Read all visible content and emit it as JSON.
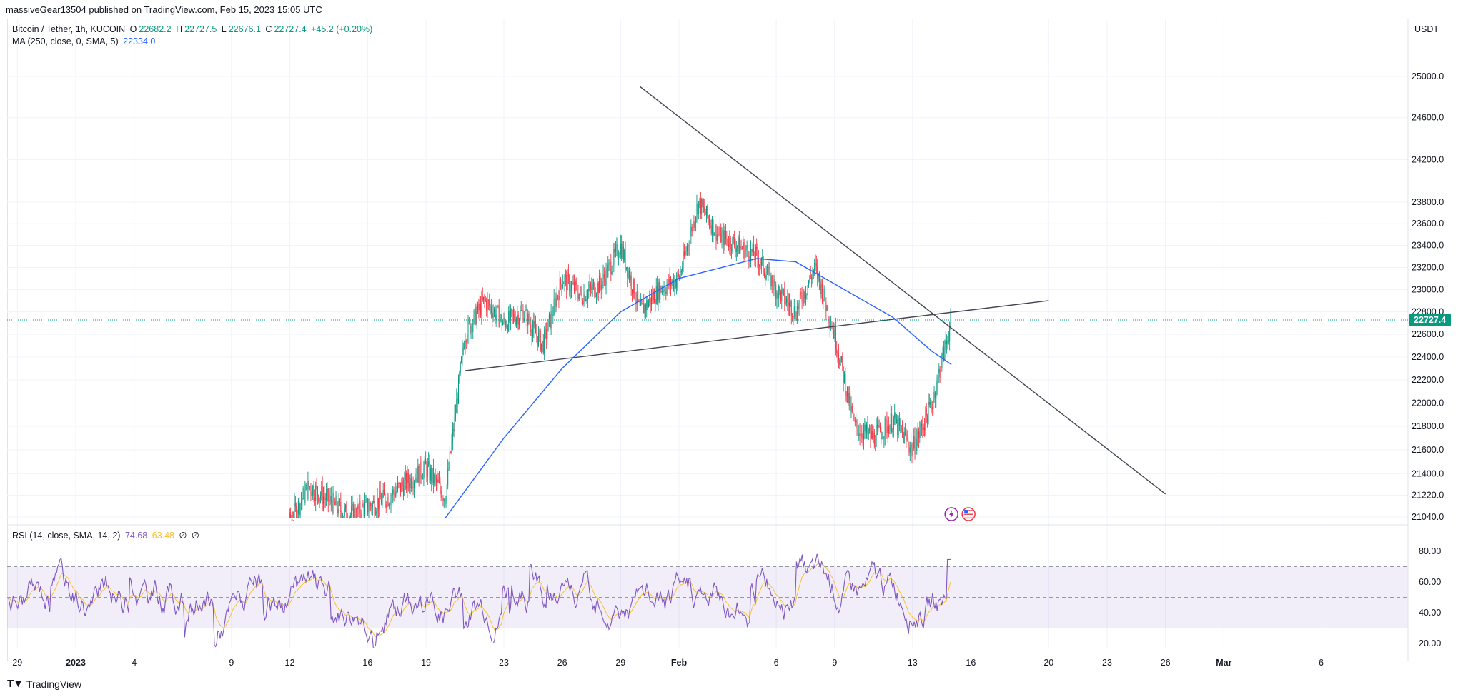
{
  "header": {
    "published_line": "massiveGear13504 published on TradingView.com, Feb 15, 2023 15:05 UTC"
  },
  "legend": {
    "symbol": "Bitcoin / Tether, 1h, KUCOIN",
    "o_label": "O",
    "o_value": "22682.2",
    "h_label": "H",
    "h_value": "22727.5",
    "l_label": "L",
    "l_value": "22676.1",
    "c_label": "C",
    "c_value": "22727.4",
    "change": "+45.2 (+0.20%)",
    "ma_label": "MA (250, close, 0, SMA, 5)",
    "ma_value": "22334.0",
    "rsi_label": "RSI (14, close, SMA, 14, 2)",
    "rsi_value": "74.68",
    "rsi_ma_value": "63.48",
    "rsi_extra1": "∅",
    "rsi_extra2": "∅"
  },
  "footer": {
    "brand": "TradingView"
  },
  "colors": {
    "up": "#089981",
    "down": "#f23645",
    "ma": "#2962ff",
    "rsi": "#7e57c2",
    "rsi_ma": "#f7c034",
    "trendline": "#434651",
    "last_price_badge": "#089981"
  },
  "chart_data": {
    "type": "candlestick",
    "symbol": "Bitcoin / Tether",
    "timeframe": "1h",
    "exchange": "KUCOIN",
    "currency": "USDT",
    "y_axis_scale": "log",
    "last_price": 22727.4,
    "ylim": [
      21040,
      25200
    ],
    "price_ticks": [
      "25000.0",
      "24600.0",
      "24200.0",
      "23800.0",
      "23600.0",
      "23400.0",
      "23200.0",
      "23000.0",
      "22800.0",
      "22600.0",
      "22400.0",
      "22200.0",
      "22000.0",
      "21800.0",
      "21600.0",
      "21400.0",
      "21220.0",
      "21040.0"
    ],
    "x_ticks": [
      "29",
      "2023",
      "4",
      "9",
      "12",
      "16",
      "19",
      "23",
      "26",
      "29",
      "Feb",
      "6",
      "9",
      "13",
      "16",
      "20",
      "23",
      "26",
      "Mar",
      "6"
    ],
    "x_tick_dates": [
      "2022-12-29",
      "2023-01-01",
      "2023-01-04",
      "2023-01-09",
      "2023-01-12",
      "2023-01-16",
      "2023-01-19",
      "2023-01-23",
      "2023-01-26",
      "2023-01-29",
      "2023-02-01",
      "2023-02-06",
      "2023-02-09",
      "2023-02-13",
      "2023-02-16",
      "2023-02-20",
      "2023-02-23",
      "2023-02-26",
      "2023-03-01",
      "2023-03-06"
    ],
    "x_range": [
      "2022-12-28",
      "2023-03-11"
    ],
    "price_path": [
      [
        "2023-01-11",
        20700
      ],
      [
        "2023-01-12",
        21000
      ],
      [
        "2023-01-13",
        21300
      ],
      [
        "2023-01-15",
        21050
      ],
      [
        "2023-01-17",
        21200
      ],
      [
        "2023-01-19",
        21450
      ],
      [
        "2023-01-20",
        21200
      ],
      [
        "2023-01-21",
        22600
      ],
      [
        "2023-01-22",
        22900
      ],
      [
        "2023-01-23",
        22700
      ],
      [
        "2023-01-24",
        22800
      ],
      [
        "2023-01-25",
        22500
      ],
      [
        "2023-01-26",
        23100
      ],
      [
        "2023-01-27",
        22950
      ],
      [
        "2023-01-28",
        23050
      ],
      [
        "2023-01-29",
        23400
      ],
      [
        "2023-01-30",
        22800
      ],
      [
        "2023-01-31",
        23000
      ],
      [
        "2023-02-01",
        23100
      ],
      [
        "2023-02-02",
        23800
      ],
      [
        "2023-02-03",
        23500
      ],
      [
        "2023-02-04",
        23400
      ],
      [
        "2023-02-05",
        23300
      ],
      [
        "2023-02-06",
        23000
      ],
      [
        "2023-02-07",
        22800
      ],
      [
        "2023-02-08",
        23200
      ],
      [
        "2023-02-09",
        22600
      ],
      [
        "2023-02-10",
        21800
      ],
      [
        "2023-02-11",
        21700
      ],
      [
        "2023-02-12",
        21850
      ],
      [
        "2023-02-13",
        21600
      ],
      [
        "2023-02-14",
        22000
      ],
      [
        "2023-02-15",
        22727
      ]
    ],
    "ma_path": [
      [
        "2023-01-20",
        20950
      ],
      [
        "2023-01-23",
        21700
      ],
      [
        "2023-01-26",
        22300
      ],
      [
        "2023-01-29",
        22800
      ],
      [
        "2023-02-01",
        23100
      ],
      [
        "2023-02-05",
        23280
      ],
      [
        "2023-02-07",
        23250
      ],
      [
        "2023-02-09",
        23050
      ],
      [
        "2023-02-12",
        22750
      ],
      [
        "2023-02-14",
        22450
      ],
      [
        "2023-02-15",
        22334
      ]
    ],
    "trendlines": [
      {
        "from": [
          "2023-01-30",
          24900
        ],
        "to": [
          "2023-02-26",
          21230
        ]
      },
      {
        "from": [
          "2023-01-21",
          22280
        ],
        "to": [
          "2023-02-20",
          22900
        ]
      }
    ],
    "rsi": {
      "ylim": [
        15,
        95
      ],
      "ticks": [
        "80.00",
        "60.00",
        "40.00",
        "20.00"
      ],
      "band": [
        30,
        70
      ],
      "mid": 50,
      "latest": 74.68,
      "latest_ma": 63.48
    },
    "events": [
      "lightning-event",
      "us-flag-event"
    ]
  }
}
